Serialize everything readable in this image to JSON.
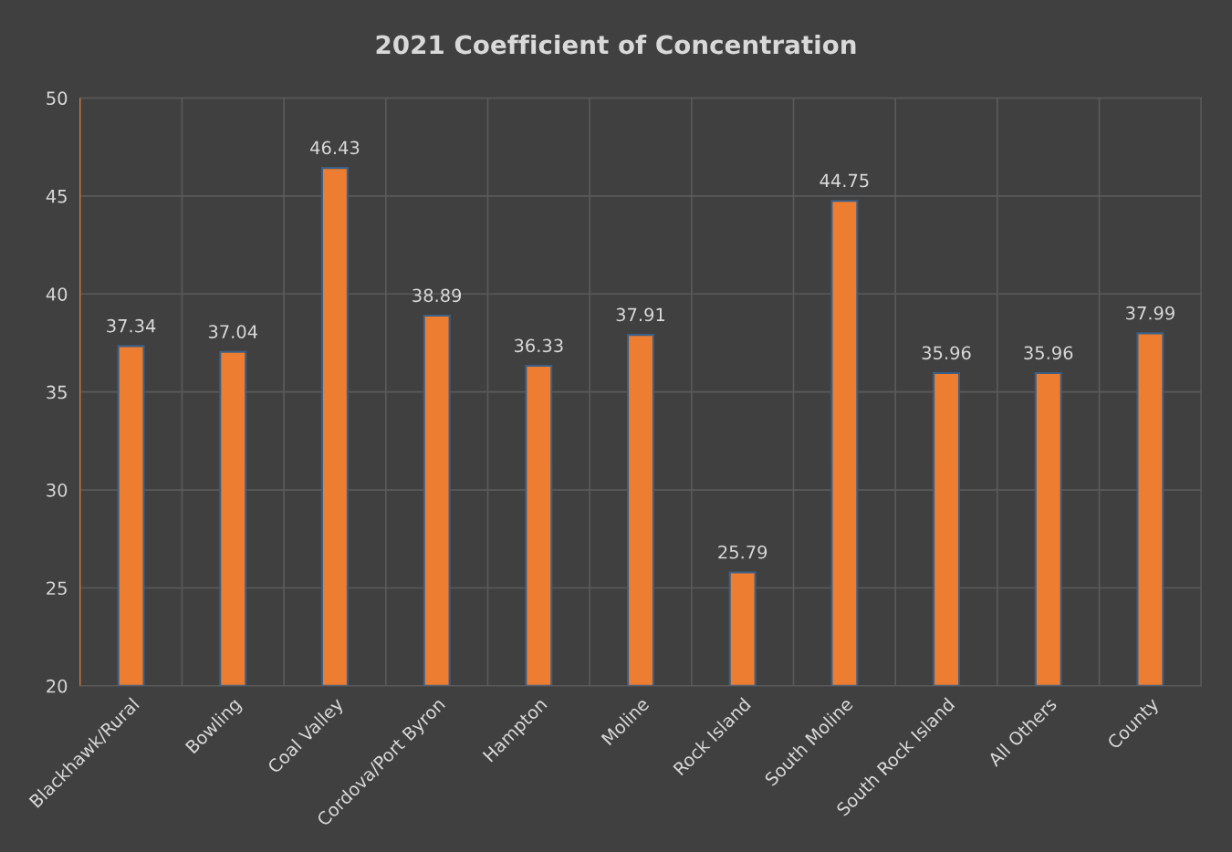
{
  "chart_data": {
    "type": "bar",
    "title": "2021 Coefficient of Concentration",
    "categories": [
      "Blackhawk/Rural",
      "Bowling",
      "Coal Valley",
      "Cordova/Port Byron",
      "Hampton",
      "Moline",
      "Rock Island",
      "South Moline",
      "South Rock Island",
      "All Others",
      "County"
    ],
    "values": [
      37.34,
      37.04,
      46.43,
      38.89,
      36.33,
      37.91,
      25.79,
      44.75,
      35.96,
      35.96,
      37.99
    ],
    "color": "#ed7d31",
    "ylim": [
      20,
      50
    ],
    "yticks": [
      20,
      25,
      30,
      35,
      40,
      45,
      50
    ],
    "grid": true,
    "data_labels": true
  }
}
